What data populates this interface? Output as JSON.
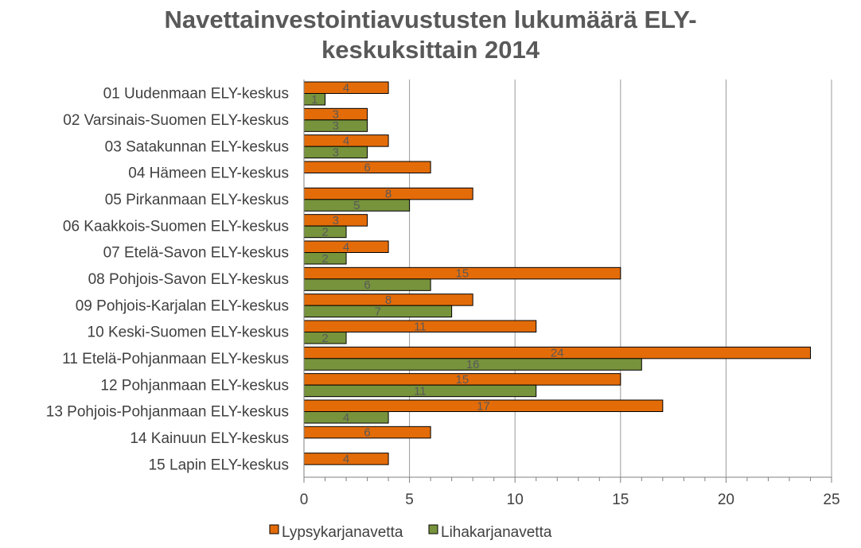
{
  "chart_data": {
    "type": "bar",
    "orientation": "horizontal",
    "title_lines": [
      "Navettainvestointiavustusten lukumäärä ELY-",
      "keskuksittain 2014"
    ],
    "categories": [
      "01 Uudenmaan ELY-keskus",
      "02 Varsinais-Suomen ELY-keskus",
      "03 Satakunnan ELY-keskus",
      "04 Hämeen ELY-keskus",
      "05 Pirkanmaan ELY-keskus",
      "06 Kaakkois-Suomen ELY-keskus",
      "07 Etelä-Savon ELY-keskus",
      "08 Pohjois-Savon ELY-keskus",
      "09 Pohjois-Karjalan ELY-keskus",
      "10 Keski-Suomen ELY-keskus",
      "11 Etelä-Pohjanmaan ELY-keskus",
      "12 Pohjanmaan ELY-keskus",
      "13 Pohjois-Pohjanmaan ELY-keskus",
      "14 Kainuun ELY-keskus",
      "15 Lapin ELY-keskus"
    ],
    "series": [
      {
        "name": "Lypsykarjanavetta",
        "color": "#E36C09",
        "values": [
          4,
          3,
          4,
          6,
          8,
          3,
          4,
          15,
          8,
          11,
          24,
          15,
          17,
          6,
          4
        ]
      },
      {
        "name": "Lihakarjanavetta",
        "color": "#77933C",
        "values": [
          1,
          3,
          3,
          null,
          5,
          2,
          2,
          6,
          7,
          2,
          16,
          11,
          4,
          null,
          null
        ]
      }
    ],
    "xlim": [
      0,
      25
    ],
    "xticks": [
      0,
      5,
      10,
      15,
      20,
      25
    ],
    "grid": true,
    "legend_position": "bottom",
    "data_labels": true
  }
}
